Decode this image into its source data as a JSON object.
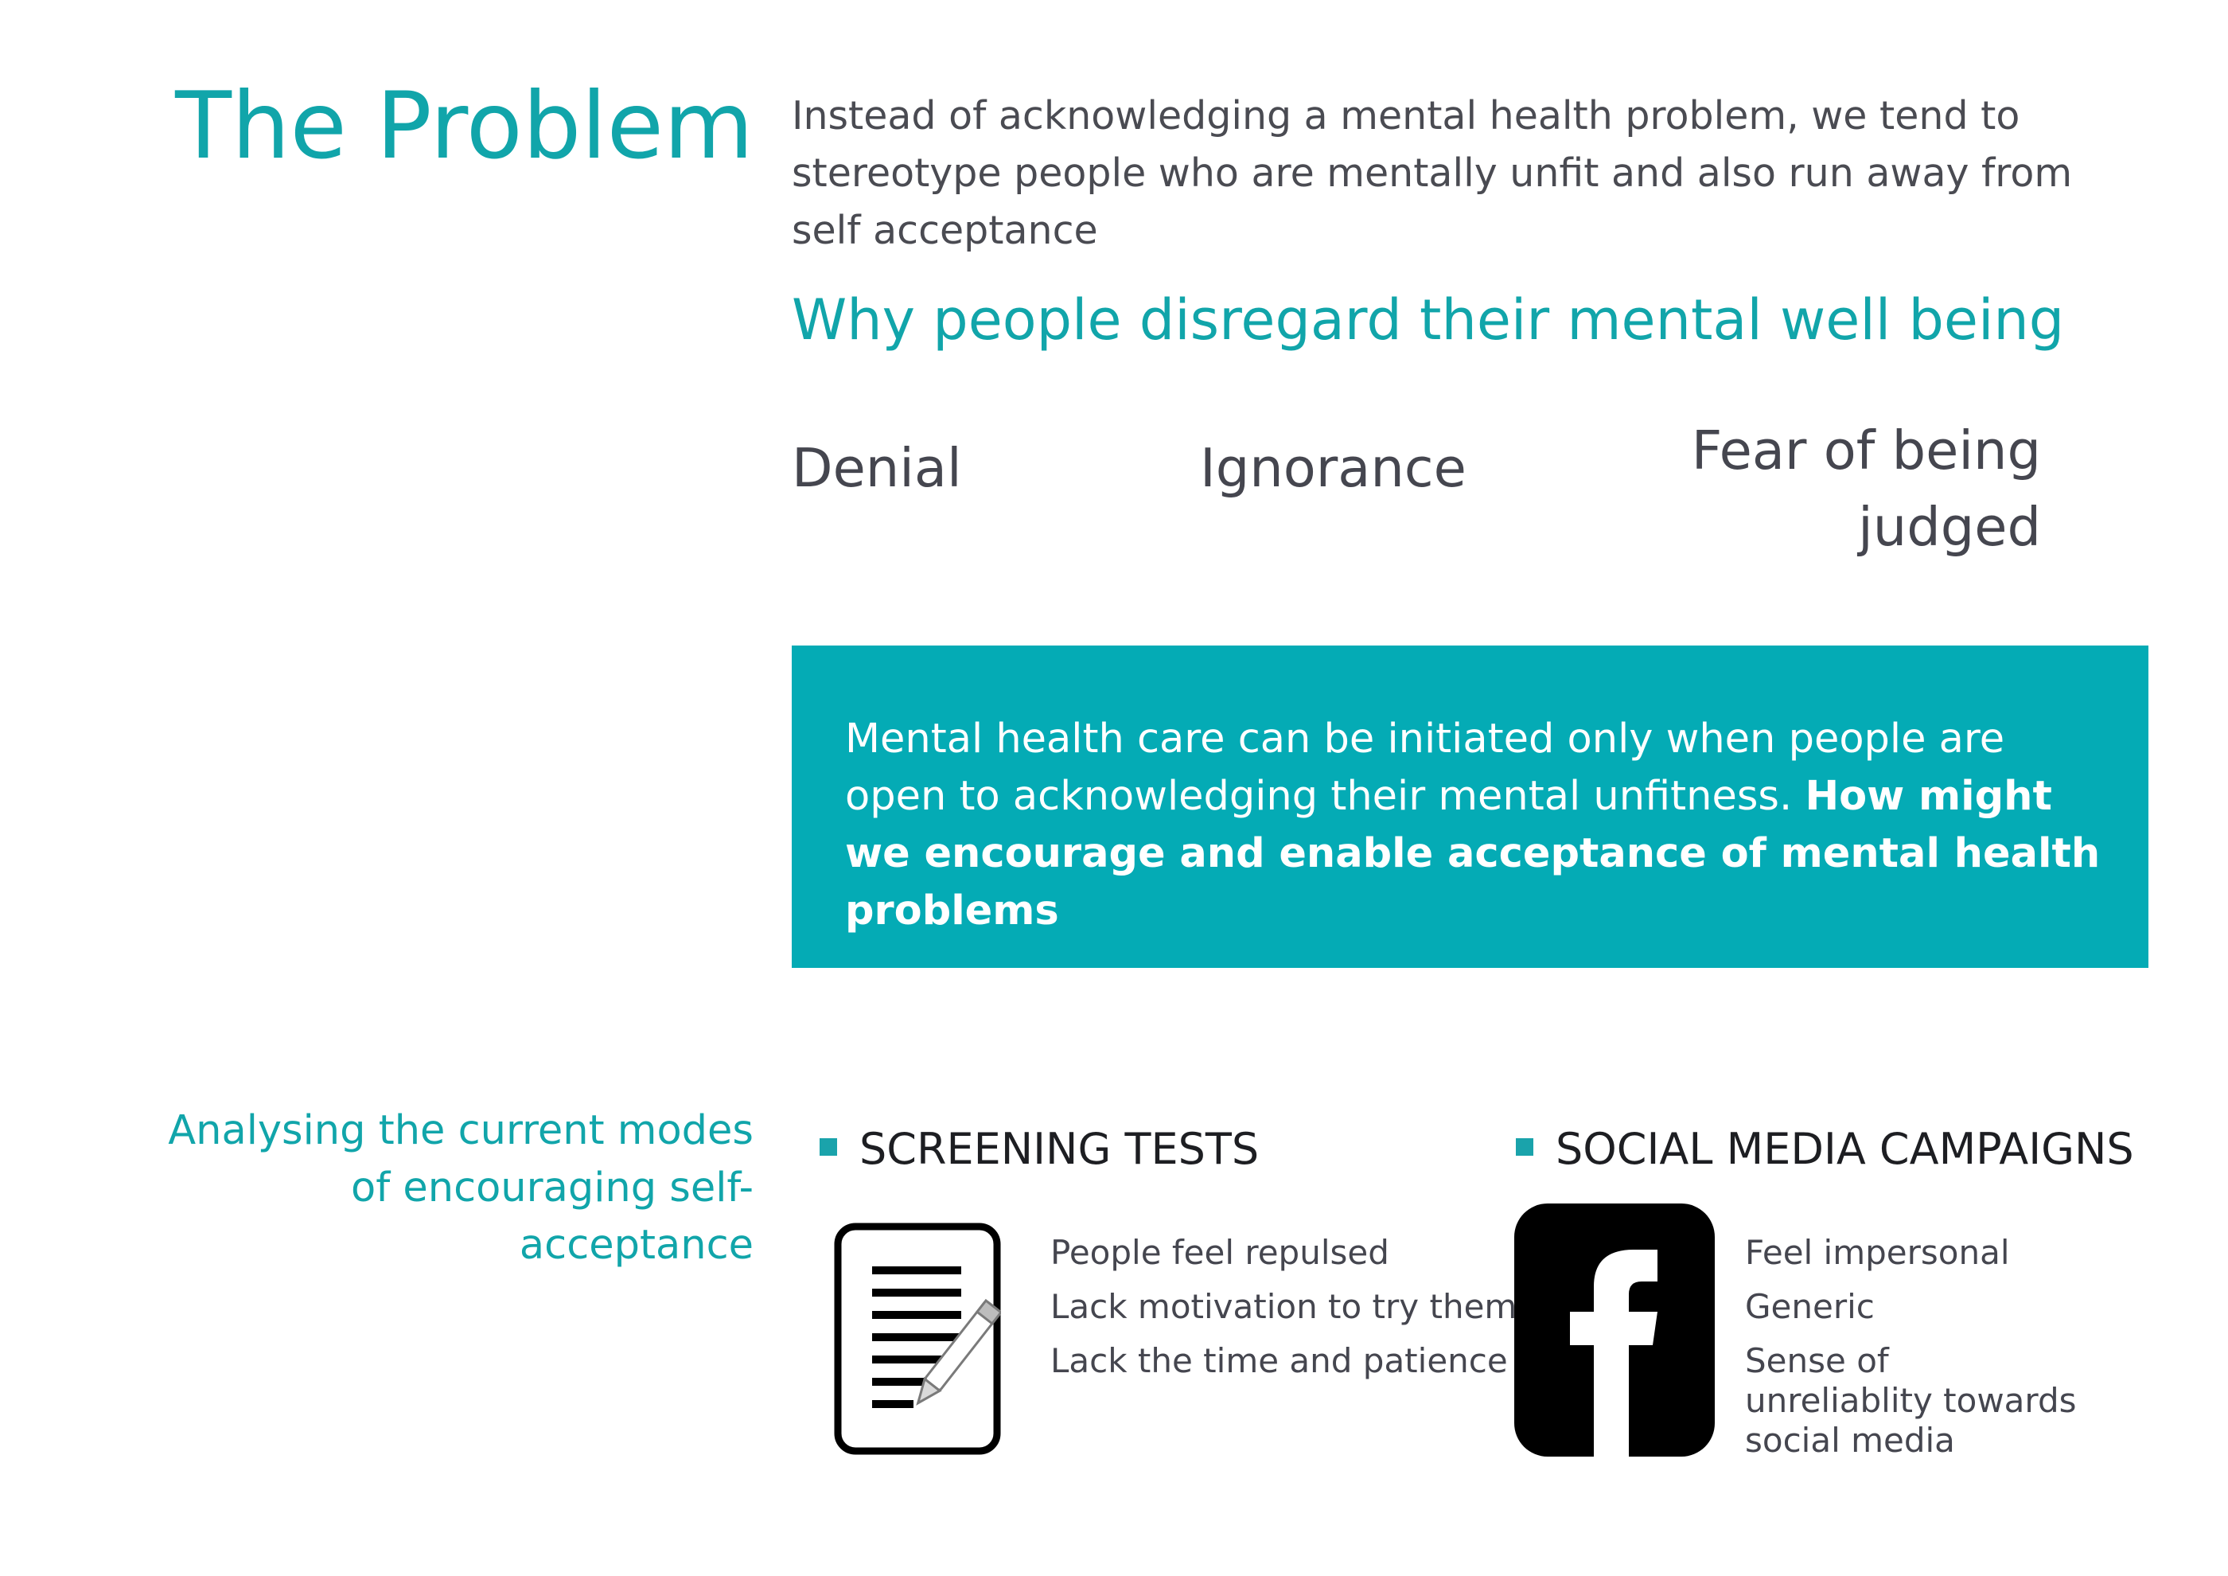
{
  "title": "The Problem",
  "intro": "Instead of acknowledging a mental health problem, we tend to stereotype people who are mentally unfit and also run away from self acceptance",
  "why_heading": "Why people disregard their mental well being",
  "reasons": [
    "Denial",
    "Ignorance",
    "Fear of being judged"
  ],
  "callout": {
    "text": "Mental health care can be initiated only when people are open to acknowledging their mental unfitness.",
    "emphasis": "How might we encourage and enable acceptance of mental health problems"
  },
  "analysis_heading": "Analysing the current modes of encouraging self-acceptance",
  "modes": [
    {
      "heading": "SCREENING TESTS",
      "icon": "document-pen-icon",
      "points": [
        "People feel repulsed",
        "Lack motivation to try them",
        "Lack the time and patience"
      ]
    },
    {
      "heading": "SOCIAL MEDIA CAMPAIGNS",
      "icon": "facebook-icon",
      "points": [
        "Feel impersonal",
        "Generic",
        "Sense of unreliablity towards social media"
      ]
    }
  ],
  "colors": {
    "accent": "#11a5aa",
    "callout_bg": "#04abb5",
    "text": "#45464f"
  }
}
